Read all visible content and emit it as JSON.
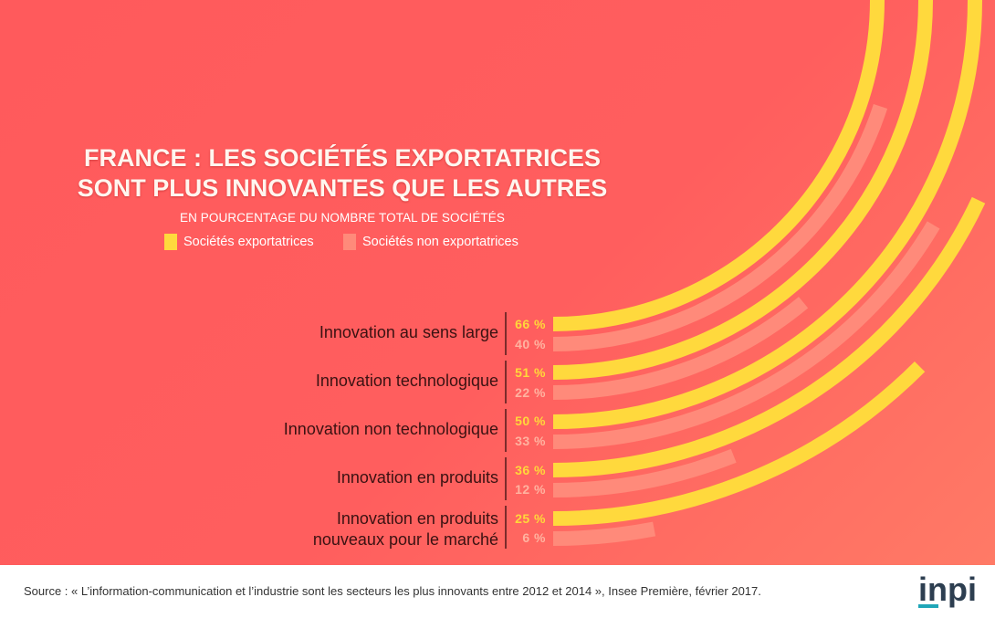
{
  "title": {
    "line1": "FRANCE : LES SOCIÉTÉS EXPORTATRICES",
    "line2": "SONT PLUS INNOVANTES QUE LES AUTRES"
  },
  "subtitle": "EN POURCENTAGE DU NOMBRE TOTAL DE SOCIÉTÉS",
  "legend": {
    "exporters": "Sociétés exportatrices",
    "non_exporters": "Sociétés non exportatrices"
  },
  "colors": {
    "exporters": "#ffd93d",
    "non_exporters": "#ff8a7a"
  },
  "chart_data": {
    "type": "bar",
    "subtype": "radial",
    "title": "FRANCE : LES SOCIÉTÉS EXPORTATRICES SONT PLUS INNOVANTES QUE LES AUTRES",
    "subtitle": "EN POURCENTAGE DU NOMBRE TOTAL DE SOCIÉTÉS",
    "unit": "%",
    "categories": [
      [
        "Innovation au sens large"
      ],
      [
        "Innovation technologique"
      ],
      [
        "Innovation non technologique"
      ],
      [
        "Innovation en produits"
      ],
      [
        "Innovation en produits",
        "nouveaux pour le marché"
      ]
    ],
    "series": [
      {
        "name": "Sociétés exportatrices",
        "values": [
          66,
          51,
          50,
          36,
          25
        ],
        "labels": [
          "66 %",
          "51 %",
          "50 %",
          "36 %",
          "25 %"
        ]
      },
      {
        "name": "Sociétés non exportatrices",
        "values": [
          40,
          22,
          33,
          12,
          6
        ],
        "labels": [
          "40 %",
          "22 %",
          "33 %",
          "12 %",
          "6 %"
        ]
      }
    ]
  },
  "footer": {
    "source": "Source : « L’information-communication et l’industrie sont les secteurs les plus innovants entre 2012 et 2014 », Insee Première, février 2017.",
    "logo": "inpi"
  }
}
